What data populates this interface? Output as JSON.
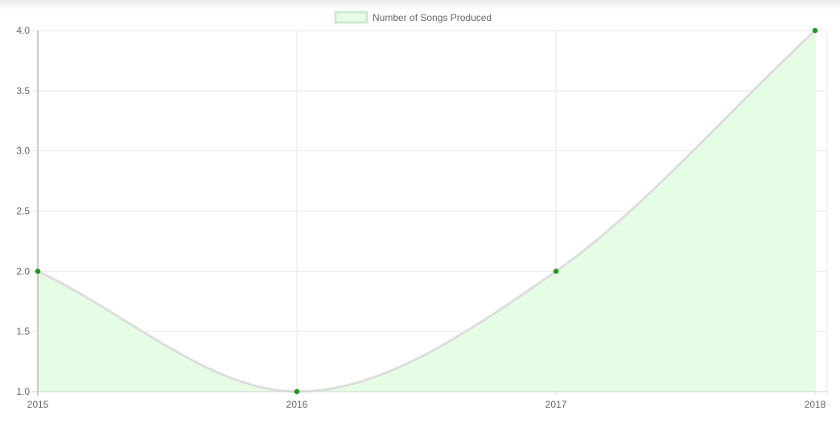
{
  "chart_data": {
    "type": "area",
    "categories": [
      "2015",
      "2016",
      "2017",
      "2018"
    ],
    "series": [
      {
        "name": "Number of Songs Produced",
        "values": [
          2,
          1,
          2,
          4
        ]
      }
    ],
    "ylim": [
      1.0,
      4.0
    ],
    "y_ticks": [
      "1.0",
      "1.5",
      "2.0",
      "2.5",
      "3.0",
      "3.5",
      "4.0"
    ],
    "grid": true,
    "legend_position": "top-center",
    "colors": {
      "fill": "#e5fde5",
      "line": "#dddddd",
      "point": "#1e9b1e",
      "grid": "#e8e8e8",
      "axis": "#999999",
      "legend_box_fill": "#e5fde5",
      "legend_box_stroke": "#cfe9cf"
    }
  }
}
